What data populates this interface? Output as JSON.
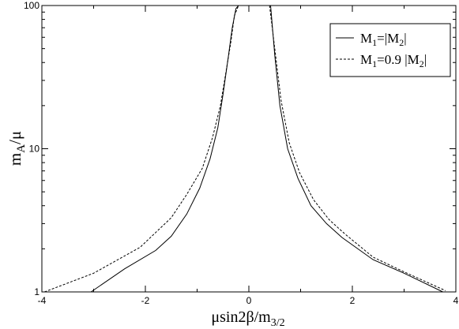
{
  "chart_data": {
    "type": "line",
    "xlabel": {
      "base": "μsin2β/m",
      "sub": "3/2"
    },
    "ylabel": {
      "base": "m",
      "sub": "A",
      "tail": "/μ"
    },
    "xlim": [
      -4,
      4
    ],
    "ylim": [
      1,
      100
    ],
    "y_scale": "log",
    "grid": false,
    "legend_position": "top-right",
    "x_ticks": [
      -4,
      -2,
      0,
      2,
      4
    ],
    "x_tick_labels": [
      "-4",
      "-2",
      "0",
      "2",
      "4"
    ],
    "y_ticks": [
      1,
      10,
      100
    ],
    "y_tick_labels": [
      "1",
      "10",
      "100"
    ],
    "series": [
      {
        "name": "M1=|M2|",
        "legend": {
          "p1": "M",
          "s1": "1",
          "p2": "=|M",
          "s2": "2",
          "p3": "|"
        },
        "style": "solid",
        "x": [
          -3.05,
          -2.4,
          -1.8,
          -1.5,
          -1.2,
          -0.95,
          -0.75,
          -0.6,
          -0.5,
          -0.4,
          -0.32,
          -0.25,
          -0.2,
          -0.15,
          -0.1,
          null,
          0.42,
          0.5,
          0.6,
          0.75,
          0.95,
          1.2,
          1.5,
          1.8,
          2.4,
          3.0,
          3.75
        ],
        "y": [
          1.0,
          1.45,
          1.95,
          2.45,
          3.5,
          5.3,
          8.5,
          14,
          24,
          43,
          70,
          95,
          100,
          100,
          100,
          null,
          100,
          45,
          20,
          10,
          6.2,
          4.0,
          3.0,
          2.4,
          1.68,
          1.35,
          1.0
        ]
      },
      {
        "name": "M1=0.9 |M2|",
        "legend": {
          "p1": "M",
          "s1": "1",
          "p2": "=0.9 |M",
          "s2": "2",
          "p3": "|"
        },
        "style": "dashed",
        "x": [
          -3.95,
          -3.0,
          -2.1,
          -1.5,
          -1.2,
          -0.9,
          -0.7,
          -0.55,
          -0.45,
          -0.35,
          -0.28,
          -0.2,
          null,
          0.4,
          0.5,
          0.62,
          0.78,
          0.98,
          1.25,
          1.55,
          1.85,
          2.4,
          3.0,
          3.8
        ],
        "y": [
          1.0,
          1.35,
          2.05,
          3.3,
          4.8,
          7.3,
          12,
          20,
          33,
          55,
          85,
          100,
          null,
          100,
          50,
          22,
          11,
          6.8,
          4.4,
          3.2,
          2.55,
          1.75,
          1.38,
          1.02
        ]
      }
    ]
  }
}
